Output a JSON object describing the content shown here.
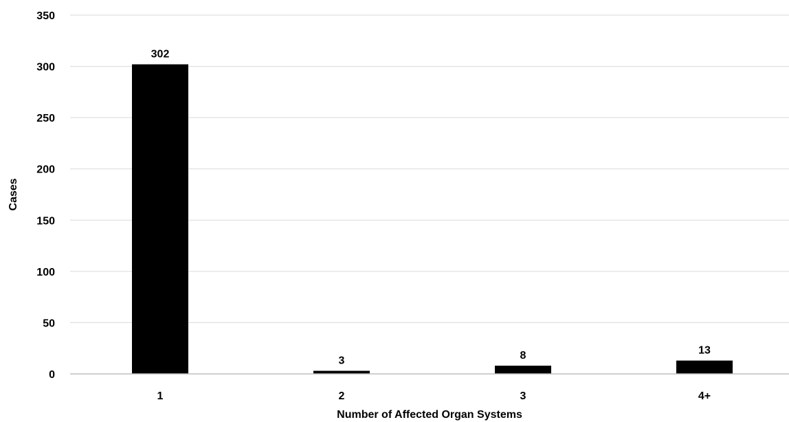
{
  "chart_data": {
    "type": "bar",
    "categories": [
      "1",
      "2",
      "3",
      "4+"
    ],
    "values": [
      302,
      3,
      8,
      13
    ],
    "data_labels": [
      "302",
      "3",
      "8",
      "13"
    ],
    "title": "",
    "xlabel": "Number of Affected Organ Systems",
    "ylabel": "Cases",
    "ylim": [
      0,
      350
    ],
    "yticks": [
      "0",
      "50",
      "100",
      "150",
      "200",
      "250",
      "300",
      "350"
    ],
    "ytick_values": [
      0,
      50,
      100,
      150,
      200,
      250,
      300,
      350
    ],
    "grid": true,
    "legend": "none",
    "colors": {
      "bar": "#000000",
      "gridline": "#d9d9d9",
      "baseline": "#bfbfbf"
    }
  }
}
